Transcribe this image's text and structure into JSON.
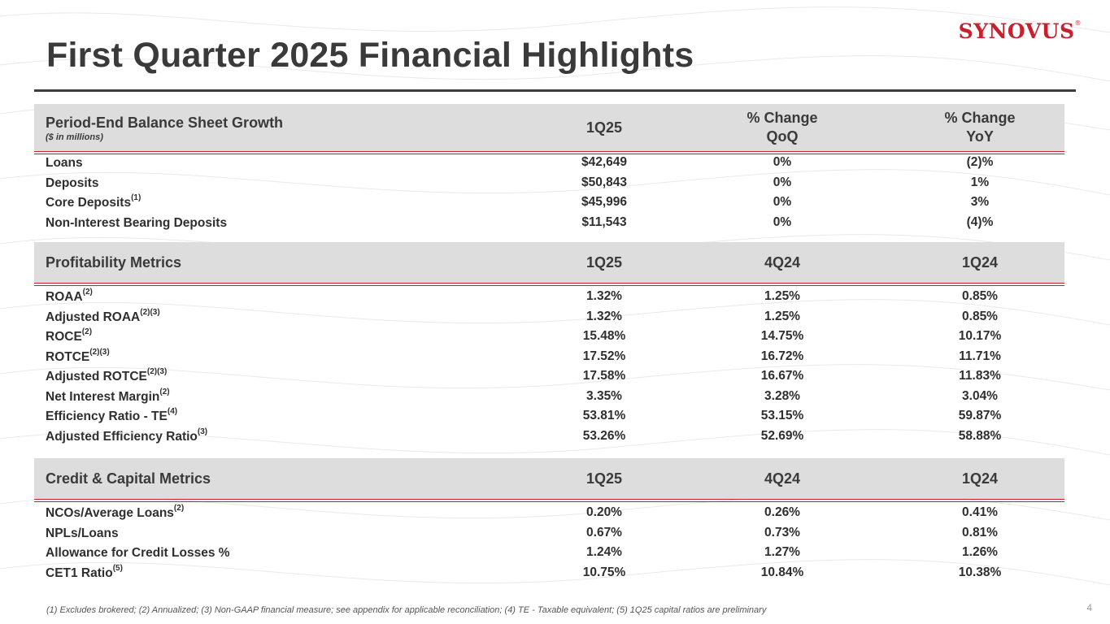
{
  "header": {
    "title": "First Quarter 2025 Financial Highlights",
    "logo_text": "SYNOVUS",
    "logo_mark": "®"
  },
  "balance": {
    "title": "Period-End Balance Sheet Growth",
    "subtitle": "($ in millions)",
    "col1": "1Q25",
    "col2_line1": "% Change",
    "col2_line2": "QoQ",
    "col3_line1": "% Change",
    "col3_line2": "YoY",
    "rows": [
      {
        "label": "Loans",
        "sup": "",
        "v1": "$42,649",
        "v2": "0%",
        "v3": "(2)%"
      },
      {
        "label": "Deposits",
        "sup": "",
        "v1": "$50,843",
        "v2": "0%",
        "v3": "1%"
      },
      {
        "label": "Core Deposits",
        "sup": "(1)",
        "v1": "$45,996",
        "v2": "0%",
        "v3": "3%"
      },
      {
        "label": "Non-Interest Bearing Deposits",
        "sup": "",
        "v1": "$11,543",
        "v2": "0%",
        "v3": "(4)%"
      }
    ]
  },
  "profitability": {
    "title": "Profitability Metrics",
    "col1": "1Q25",
    "col2": "4Q24",
    "col3": "1Q24",
    "rows": [
      {
        "label": "ROAA",
        "sup": "(2)",
        "v1": "1.32%",
        "v2": "1.25%",
        "v3": "0.85%"
      },
      {
        "label": "Adjusted ROAA",
        "sup": "(2)(3)",
        "v1": "1.32%",
        "v2": "1.25%",
        "v3": "0.85%"
      },
      {
        "label": "ROCE",
        "sup": "(2)",
        "v1": "15.48%",
        "v2": "14.75%",
        "v3": "10.17%"
      },
      {
        "label": "ROTCE",
        "sup": "(2)(3)",
        "v1": "17.52%",
        "v2": "16.72%",
        "v3": "11.71%"
      },
      {
        "label": "Adjusted ROTCE",
        "sup": "(2)(3)",
        "v1": "17.58%",
        "v2": "16.67%",
        "v3": "11.83%"
      },
      {
        "label": "Net Interest Margin",
        "sup": "(2)",
        "v1": "3.35%",
        "v2": "3.28%",
        "v3": "3.04%"
      },
      {
        "label": "Efficiency Ratio - TE",
        "sup": "(4)",
        "v1": "53.81%",
        "v2": "53.15%",
        "v3": "59.87%"
      },
      {
        "label": "Adjusted Efficiency Ratio",
        "sup": "(3)",
        "v1": "53.26%",
        "v2": "52.69%",
        "v3": "58.88%"
      }
    ]
  },
  "credit": {
    "title": "Credit & Capital Metrics",
    "col1": "1Q25",
    "col2": "4Q24",
    "col3": "1Q24",
    "rows": [
      {
        "label": "NCOs/Average Loans",
        "sup": "(2)",
        "v1": "0.20%",
        "v2": "0.26%",
        "v3": "0.41%"
      },
      {
        "label": "NPLs/Loans",
        "sup": "",
        "v1": "0.67%",
        "v2": "0.73%",
        "v3": "0.81%"
      },
      {
        "label": "Allowance for Credit Losses %",
        "sup": "",
        "v1": "1.24%",
        "v2": "1.27%",
        "v3": "1.26%"
      },
      {
        "label": "CET1 Ratio",
        "sup": "(5)",
        "v1": "10.75%",
        "v2": "10.84%",
        "v3": "10.38%"
      }
    ]
  },
  "footer": {
    "footnote": "(1) Excludes brokered; (2) Annualized; (3) Non-GAAP financial measure; see appendix for applicable reconciliation; (4) TE - Taxable equivalent; (5) 1Q25 capital ratios are preliminary",
    "page_number": "4"
  }
}
